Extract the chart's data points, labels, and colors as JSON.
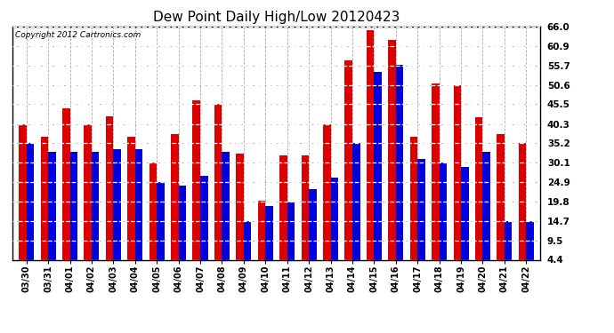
{
  "title": "Dew Point Daily High/Low 20120423",
  "copyright": "Copyright 2012 Cartronics.com",
  "dates": [
    "03/30",
    "03/31",
    "04/01",
    "04/02",
    "04/03",
    "04/04",
    "04/05",
    "04/06",
    "04/07",
    "04/08",
    "04/09",
    "04/10",
    "04/11",
    "04/12",
    "04/13",
    "04/14",
    "04/15",
    "04/16",
    "04/17",
    "04/18",
    "04/19",
    "04/20",
    "04/21",
    "04/22"
  ],
  "highs": [
    40.3,
    37.0,
    44.5,
    40.3,
    42.3,
    37.0,
    30.0,
    37.5,
    46.5,
    45.5,
    32.5,
    20.0,
    32.0,
    32.0,
    40.3,
    57.0,
    65.0,
    62.5,
    37.0,
    51.0,
    50.6,
    42.0,
    37.5,
    35.2
  ],
  "lows": [
    35.2,
    33.0,
    33.0,
    33.0,
    33.5,
    33.5,
    24.9,
    24.0,
    26.5,
    33.0,
    14.7,
    18.5,
    19.5,
    23.0,
    26.0,
    35.2,
    54.0,
    56.0,
    31.0,
    30.1,
    29.0,
    33.0,
    14.7,
    14.7
  ],
  "yticks": [
    4.4,
    9.5,
    14.7,
    19.8,
    24.9,
    30.1,
    35.2,
    40.3,
    45.5,
    50.6,
    55.7,
    60.9,
    66.0
  ],
  "ymin": 4.4,
  "ymax": 66.0,
  "high_color": "#dd0000",
  "low_color": "#0000dd",
  "bg_color": "#ffffff",
  "grid_color_dash": "#aaaaaa",
  "bar_width": 0.35,
  "title_fontsize": 11,
  "copyright_fontsize": 6.5,
  "tick_fontsize": 7,
  "ytick_fontsize": 7.5
}
